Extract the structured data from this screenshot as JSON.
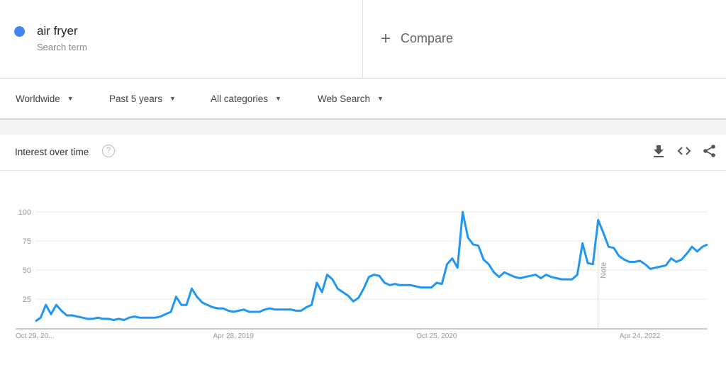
{
  "search": {
    "term": "air fryer",
    "term_subtitle": "Search term",
    "term_color": "#4285f4",
    "compare_label": "Compare",
    "compare_icon": "plus-icon"
  },
  "filters": {
    "region": "Worldwide",
    "time_range": "Past 5 years",
    "category": "All categories",
    "search_type": "Web Search"
  },
  "card": {
    "title": "Interest over time",
    "help_icon": "question-circle-icon",
    "actions": [
      "download-icon",
      "embed-icon",
      "share-icon"
    ]
  },
  "chart_data": {
    "type": "line",
    "x_tick_labels": [
      "Oct 29, 20...",
      "Apr 28, 2019",
      "Oct 25, 2020",
      "Apr 24, 2022"
    ],
    "x_tick_index": [
      0,
      38,
      77,
      116
    ],
    "ylim": [
      0,
      100
    ],
    "y_ticks": [
      25,
      50,
      75,
      100
    ],
    "grid": true,
    "line_color": "#2196f3",
    "annotation": {
      "label": "Note",
      "at_index": 108
    },
    "series": [
      {
        "values": [
          6,
          9,
          20,
          12,
          20,
          15,
          11,
          11,
          10,
          9,
          8,
          8,
          9,
          8,
          8,
          7,
          8,
          7,
          9,
          10,
          9,
          9,
          9,
          9,
          10,
          12,
          14,
          27,
          20,
          20,
          34,
          27,
          22,
          20,
          18,
          17,
          17,
          15,
          14,
          15,
          16,
          14,
          14,
          14,
          16,
          17,
          16,
          16,
          16,
          16,
          15,
          15,
          18,
          20,
          39,
          31,
          46,
          42,
          34,
          31,
          28,
          23,
          26,
          34,
          44,
          46,
          45,
          39,
          37,
          38,
          37,
          37,
          37,
          36,
          35,
          35,
          35,
          39,
          38,
          55,
          60,
          52,
          100,
          78,
          72,
          71,
          59,
          55,
          48,
          44,
          48,
          46,
          44,
          43,
          44,
          45,
          46,
          43,
          46,
          44,
          43,
          42,
          42,
          42,
          46,
          73,
          56,
          55,
          93,
          82,
          70,
          69,
          62,
          59,
          57,
          57,
          58,
          55,
          51,
          52,
          53,
          54,
          60,
          57,
          59,
          64,
          70,
          66,
          70,
          72
        ]
      }
    ]
  }
}
